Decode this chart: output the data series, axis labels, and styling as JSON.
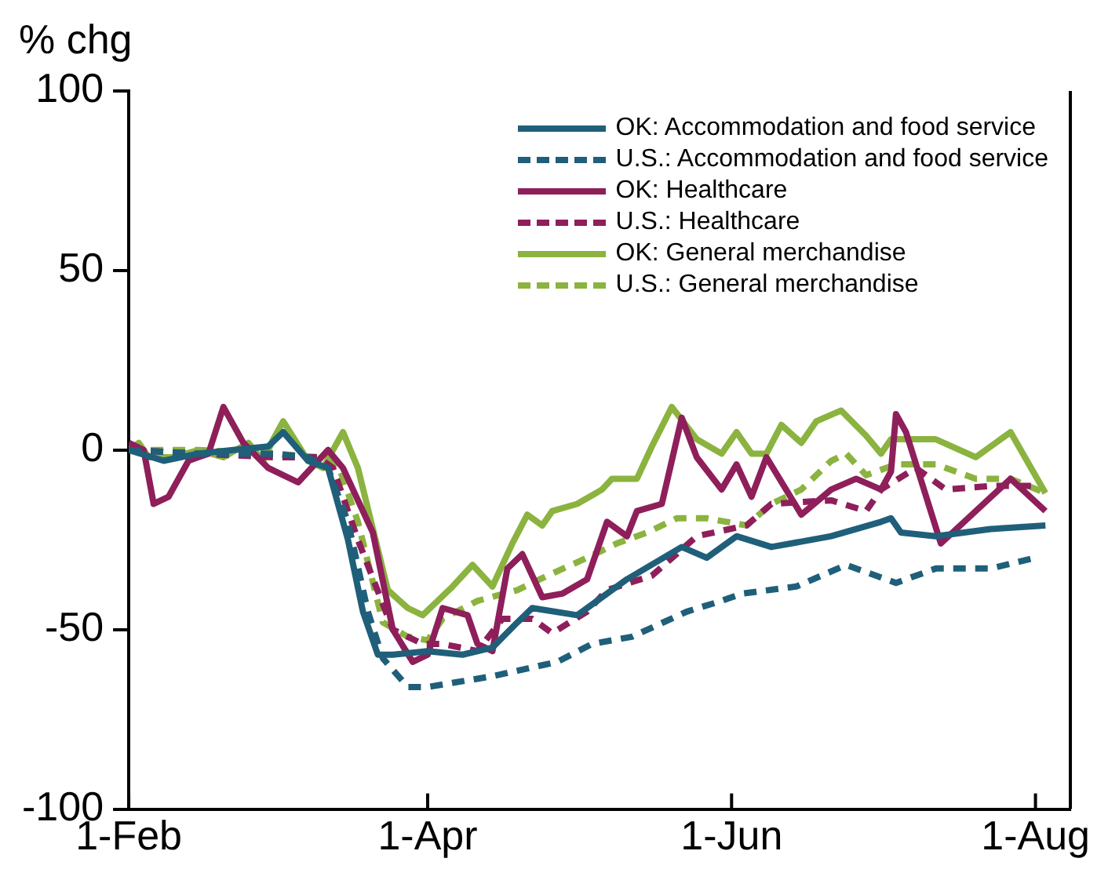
{
  "chart_data": {
    "type": "line",
    "ylabel": "% chg",
    "xlim": [
      "--02-01",
      "--08-08"
    ],
    "ylim": [
      -100,
      100
    ],
    "yticks": [
      -100,
      -50,
      0,
      50,
      100
    ],
    "xticks": [
      {
        "value": "--02-01",
        "label": "1-Feb"
      },
      {
        "value": "--04-01",
        "label": "1-Apr"
      },
      {
        "value": "--06-01",
        "label": "1-Jun"
      },
      {
        "value": "--08-01",
        "label": "1-Aug"
      }
    ],
    "grid": false,
    "legend": "top right",
    "marker": "none",
    "series": [
      {
        "name": "OK: Accommodation and food service",
        "color": "#1f5f7a",
        "line_style": "solid",
        "x": [
          "--02-01",
          "--02-08",
          "--02-15",
          "--02-22",
          "--02-29",
          "--03-03",
          "--03-08",
          "--03-12",
          "--03-16",
          "--03-19",
          "--03-22",
          "--03-25",
          "--04-01",
          "--04-08",
          "--04-14",
          "--04-19",
          "--04-22",
          "--05-01",
          "--05-11",
          "--05-22",
          "--05-27",
          "--06-02",
          "--06-09",
          "--06-21",
          "--07-01",
          "--07-03",
          "--07-05",
          "--07-12",
          "--07-23",
          "--08-03"
        ],
        "values": [
          0,
          -3,
          -1,
          0,
          1,
          5,
          -3,
          -5,
          -25,
          -45,
          -57,
          -57,
          -56,
          -57,
          -55,
          -48,
          -44,
          -46,
          -36,
          -27,
          -30,
          -24,
          -27,
          -24,
          -20,
          -19,
          -23,
          -24,
          -22,
          -21
        ]
      },
      {
        "name": "U.S.: Accommodation and food service",
        "color": "#1f5f7a",
        "line_style": "dashed",
        "x": [
          "--02-01",
          "--02-15",
          "--03-01",
          "--03-08",
          "--03-12",
          "--03-16",
          "--03-20",
          "--03-23",
          "--03-28",
          "--04-01",
          "--04-14",
          "--04-27",
          "--05-04",
          "--05-12",
          "--05-23",
          "--05-30",
          "--06-03",
          "--06-14",
          "--06-24",
          "--06-30",
          "--07-04",
          "--07-12",
          "--07-23",
          "--08-01"
        ],
        "values": [
          0,
          -1,
          -1,
          -2,
          -5,
          -20,
          -45,
          -58,
          -66,
          -66,
          -63,
          -59,
          -54,
          -52,
          -45,
          -42,
          -40,
          -38,
          -32,
          -35,
          -37,
          -33,
          -33,
          -30
        ]
      },
      {
        "name": "OK: Healthcare",
        "color": "#8e1f5a",
        "line_style": "solid",
        "x": [
          "--02-01",
          "--02-04",
          "--02-06",
          "--02-09",
          "--02-13",
          "--02-17",
          "--02-20",
          "--02-24",
          "--02-29",
          "--03-06",
          "--03-12",
          "--03-15",
          "--03-21",
          "--03-25",
          "--03-29",
          "--04-01",
          "--04-04",
          "--04-09",
          "--04-11",
          "--04-14",
          "--04-17",
          "--04-20",
          "--04-24",
          "--04-28",
          "--05-03",
          "--05-07",
          "--05-11",
          "--05-13",
          "--05-18",
          "--05-22",
          "--05-25",
          "--05-30",
          "--06-02",
          "--06-05",
          "--06-08",
          "--06-15",
          "--06-21",
          "--06-26",
          "--07-01",
          "--07-03",
          "--07-04",
          "--07-06",
          "--07-13",
          "--07-27",
          "--08-03"
        ],
        "values": [
          2,
          0,
          -15,
          -13,
          -3,
          -1,
          12,
          2,
          -5,
          -9,
          0,
          -5,
          -23,
          -50,
          -59,
          -57,
          -44,
          -46,
          -54,
          -56,
          -33,
          -29,
          -41,
          -40,
          -36,
          -20,
          -24,
          -17,
          -15,
          9,
          -2,
          -11,
          -4,
          -13,
          -2,
          -18,
          -11,
          -8,
          -11,
          -6,
          10,
          5,
          -26,
          -8,
          -17
        ]
      },
      {
        "name": "U.S.: Healthcare",
        "color": "#8e1f5a",
        "line_style": "dashed",
        "x": [
          "--02-01",
          "--02-15",
          "--03-01",
          "--03-10",
          "--03-13",
          "--03-18",
          "--03-25",
          "--03-31",
          "--04-04",
          "--04-11",
          "--04-16",
          "--04-22",
          "--04-26",
          "--05-03",
          "--05-07",
          "--05-16",
          "--05-25",
          "--06-04",
          "--06-09",
          "--06-21",
          "--06-28",
          "--07-01",
          "--07-08",
          "--07-14",
          "--07-23",
          "--08-01"
        ],
        "values": [
          0,
          -1,
          -2,
          -2,
          -5,
          -25,
          -50,
          -54,
          -54,
          -56,
          -47,
          -47,
          -51,
          -45,
          -39,
          -35,
          -24,
          -21,
          -15,
          -14,
          -17,
          -11,
          -5,
          -11,
          -10,
          -10
        ]
      },
      {
        "name": "OK: General merchandise",
        "color": "#8bb33f",
        "line_style": "solid",
        "x": [
          "--02-01",
          "--02-03",
          "--02-05",
          "--02-10",
          "--02-15",
          "--02-20",
          "--02-25",
          "--02-28",
          "--03-01",
          "--03-03",
          "--03-08",
          "--03-11",
          "--03-15",
          "--03-18",
          "--03-21",
          "--03-24",
          "--03-28",
          "--03-31",
          "--04-03",
          "--04-06",
          "--04-10",
          "--04-14",
          "--04-18",
          "--04-21",
          "--04-24",
          "--04-26",
          "--05-01",
          "--05-06",
          "--05-08",
          "--05-13",
          "--05-16",
          "--05-20",
          "--05-25",
          "--05-30",
          "--06-02",
          "--06-05",
          "--06-08",
          "--06-11",
          "--06-15",
          "--06-18",
          "--06-23",
          "--06-28",
          "--07-01",
          "--07-03",
          "--07-12",
          "--07-20",
          "--07-27",
          "--08-03"
        ],
        "values": [
          0,
          2,
          -2,
          -2,
          0,
          -2,
          2,
          -3,
          3,
          8,
          -3,
          -5,
          5,
          -5,
          -22,
          -39,
          -44,
          -46,
          -42,
          -38,
          -32,
          -38,
          -26,
          -18,
          -21,
          -17,
          -15,
          -11,
          -8,
          -8,
          1,
          12,
          3,
          -1,
          5,
          -1,
          -1,
          7,
          2,
          8,
          11,
          4,
          -1,
          3,
          3,
          -2,
          5,
          -12
        ]
      },
      {
        "name": "U.S.: General merchandise",
        "color": "#8bb33f",
        "line_style": "dashed",
        "x": [
          "--02-01",
          "--02-15",
          "--03-01",
          "--03-10",
          "--03-14",
          "--03-18",
          "--03-23",
          "--03-28",
          "--04-01",
          "--04-04",
          "--04-11",
          "--04-19",
          "--04-25",
          "--05-03",
          "--05-09",
          "--05-15",
          "--05-21",
          "--05-27",
          "--06-04",
          "--06-09",
          "--06-15",
          "--06-21",
          "--06-24",
          "--06-28",
          "--07-04",
          "--07-12",
          "--07-20",
          "--07-27",
          "--08-03"
        ],
        "values": [
          0,
          0,
          -1,
          -2,
          -4,
          -20,
          -48,
          -52,
          -53,
          -47,
          -42,
          -39,
          -35,
          -30,
          -26,
          -23,
          -19,
          -19,
          -21,
          -15,
          -11,
          -3,
          -1,
          -7,
          -4,
          -4,
          -8,
          -8,
          -12
        ]
      }
    ]
  }
}
